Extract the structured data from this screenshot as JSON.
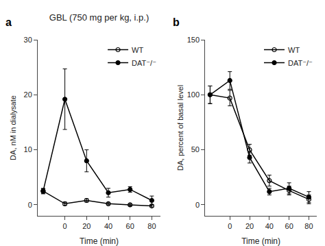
{
  "chart_data": [
    {
      "type": "line",
      "title": "GBL (750 mg per kg, i.p.)",
      "annotations": [
        {
          "text": "a"
        }
      ],
      "x_label": "Time (min)",
      "y_label": "DA, nM in dialysate",
      "x": [
        -20,
        0,
        20,
        40,
        60,
        80
      ],
      "series": [
        {
          "name": "WT",
          "color": "black",
          "marker": "open circle",
          "values": [
            2.5,
            0.2,
            0.8,
            0.2,
            0.0,
            -0.2
          ],
          "errors": [
            0.4,
            0.3,
            0.3,
            0.2,
            0.2,
            0.2
          ]
        },
        {
          "name": "DAT⁻/⁻",
          "color": "black",
          "marker": "circle",
          "values": [
            2.5,
            19.2,
            8.0,
            2.2,
            2.8,
            0.8
          ],
          "errors": [
            0.5,
            5.5,
            2.0,
            0.8,
            0.5,
            0.8
          ]
        }
      ],
      "xlim": [
        -25,
        88
      ],
      "xticks": [
        0,
        20,
        40,
        60,
        80
      ],
      "ylim": [
        -2,
        30
      ],
      "yticks": [
        0,
        10,
        20,
        30
      ],
      "legend": "upper right",
      "grid": false
    },
    {
      "type": "line",
      "annotations": [
        {
          "text": "b"
        }
      ],
      "x_label": "Time (min)",
      "y_label": "DA, percent of basal level",
      "x": [
        -20,
        0,
        20,
        40,
        60,
        80
      ],
      "series": [
        {
          "name": "WT",
          "color": "black",
          "marker": "open circle",
          "values": [
            100,
            97,
            50,
            22,
            13,
            5
          ],
          "errors": [
            8,
            7,
            5,
            5,
            4,
            4
          ]
        },
        {
          "name": "DAT⁻/⁻",
          "color": "black",
          "marker": "circle",
          "values": [
            100,
            113,
            43,
            12,
            15,
            7
          ],
          "errors": [
            8,
            8,
            5,
            3,
            5,
            5
          ]
        }
      ],
      "xlim": [
        -25,
        88
      ],
      "xticks": [
        0,
        20,
        40,
        60,
        80
      ],
      "ylim": [
        -10,
        150
      ],
      "yticks": [
        0,
        50,
        100,
        150
      ],
      "legend": "upper right",
      "grid": false
    }
  ]
}
